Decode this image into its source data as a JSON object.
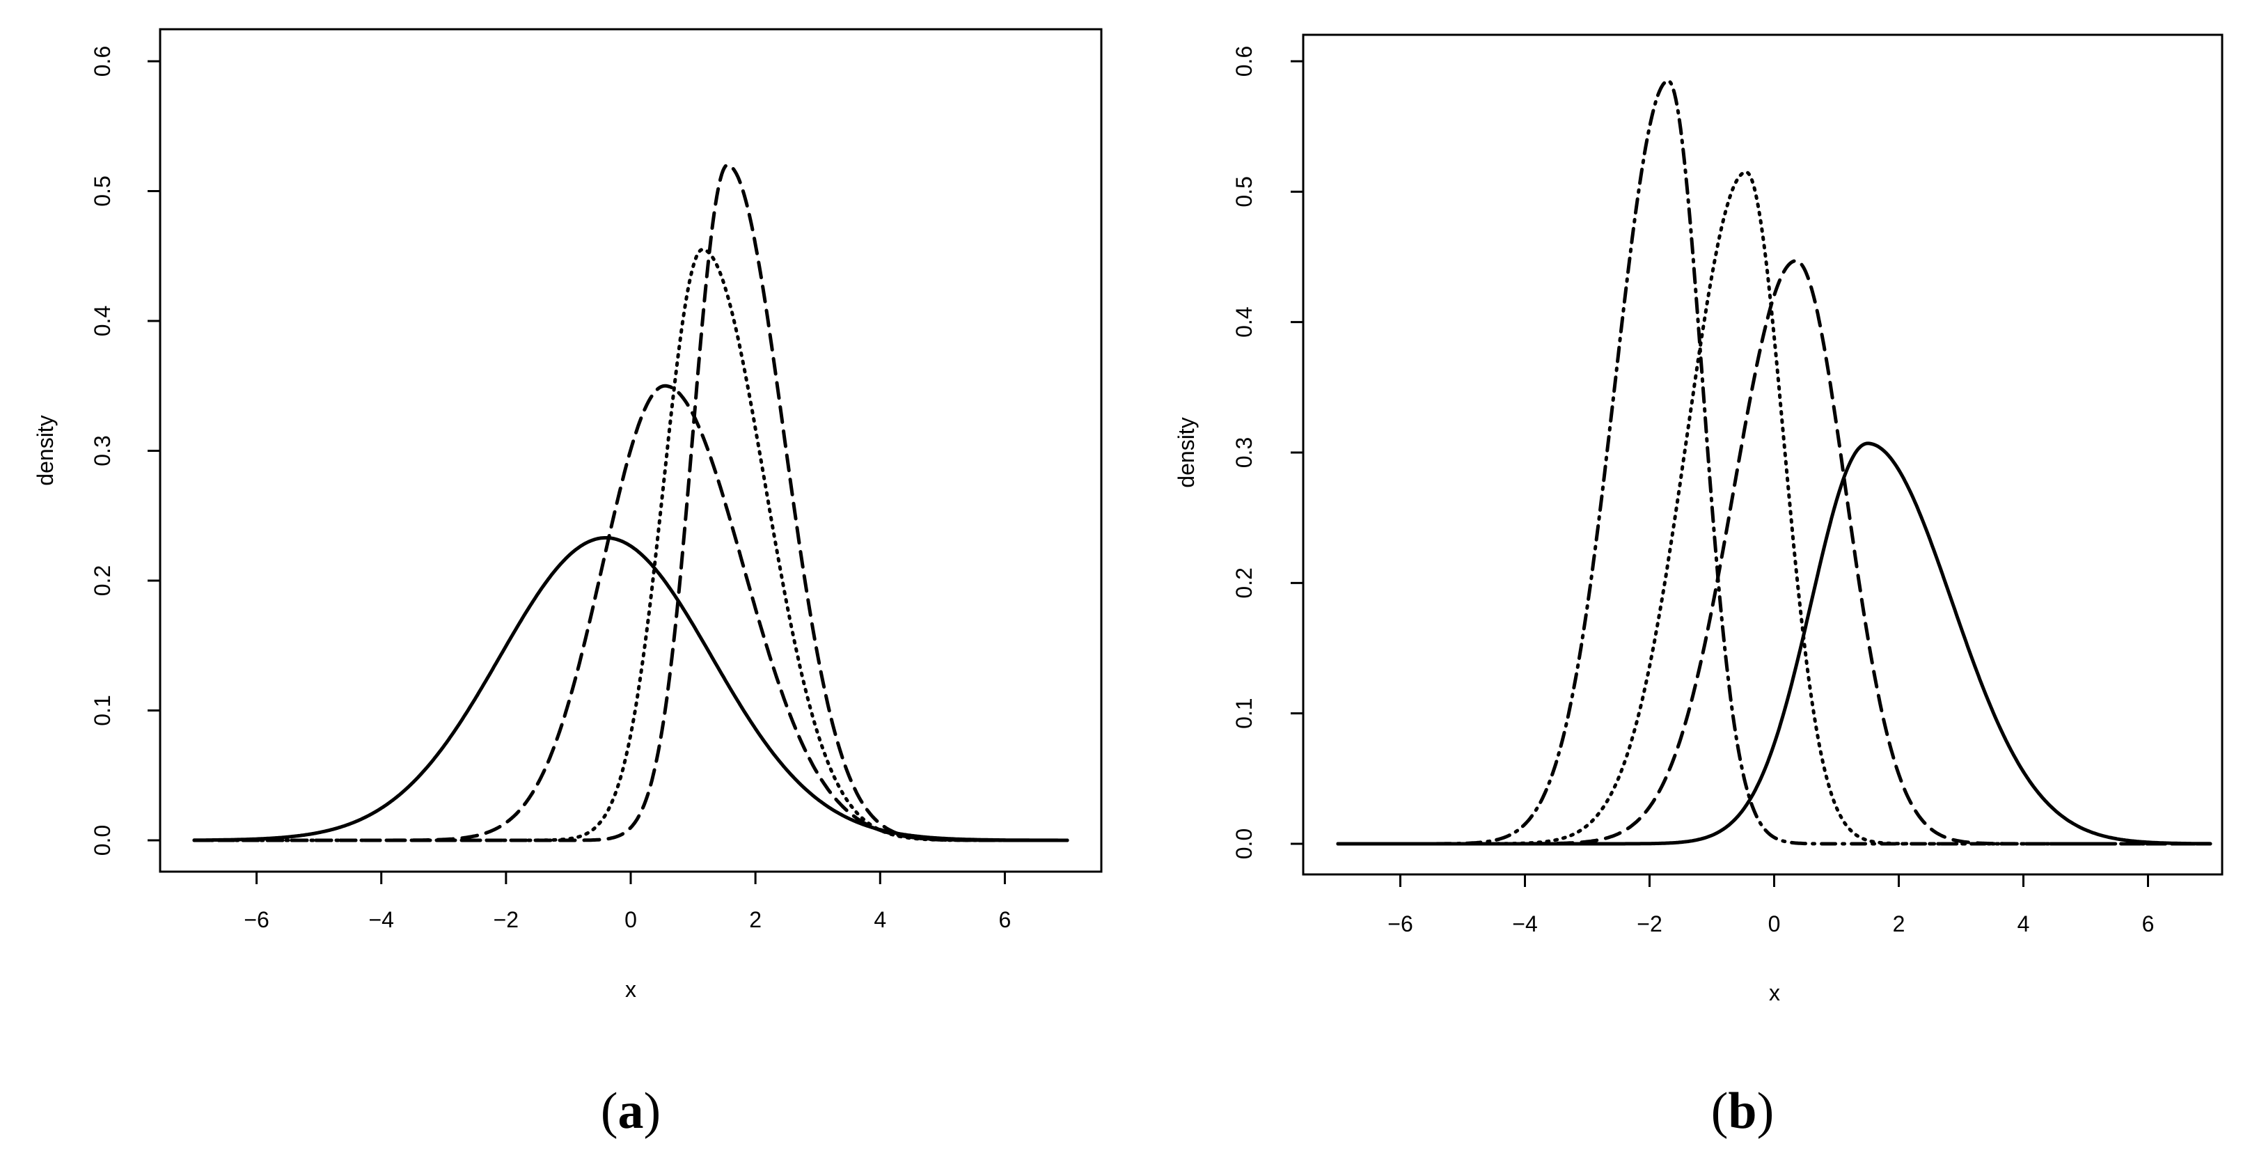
{
  "chart_data": [
    {
      "type": "line",
      "panel_label": {
        "open": "(",
        "letter": "a",
        "close": ")"
      },
      "xlabel": "x",
      "ylabel": "density",
      "xlim": [
        -7,
        7
      ],
      "ylim": [
        0,
        0.6
      ],
      "xticks": [
        -6,
        -4,
        -2,
        0,
        2,
        4,
        6
      ],
      "xtick_labels": [
        "−6",
        "−4",
        "−2",
        "0",
        "2",
        "4",
        "6"
      ],
      "yticks": [
        0.0,
        0.1,
        0.2,
        0.3,
        0.4,
        0.5,
        0.6
      ],
      "ytick_labels": [
        "0.0",
        "0.1",
        "0.2",
        "0.3",
        "0.4",
        "0.5",
        "0.6"
      ],
      "grid": false,
      "legend": "none",
      "series": [
        {
          "name": "solid",
          "linestyle": "solid",
          "peak_x": -0.4,
          "peak_density": 0.233,
          "left_scale": 1.7,
          "right_scale": 1.7
        },
        {
          "name": "dashed-wide",
          "linestyle": "dashed",
          "peak_x": 0.55,
          "peak_density": 0.35,
          "left_scale": 1.0,
          "right_scale": 1.25
        },
        {
          "name": "dotted",
          "linestyle": "dotted",
          "peak_x": 1.15,
          "peak_density": 0.455,
          "left_scale": 0.62,
          "right_scale": 1.0
        },
        {
          "name": "dashed-narrow",
          "linestyle": "dashed",
          "peak_x": 1.55,
          "peak_density": 0.52,
          "left_scale": 0.55,
          "right_scale": 0.9
        }
      ]
    },
    {
      "type": "line",
      "panel_label": {
        "open": "(",
        "letter": "b",
        "close": ")"
      },
      "xlabel": "x",
      "ylabel": "density",
      "xlim": [
        -7,
        7
      ],
      "ylim": [
        0,
        0.6
      ],
      "xticks": [
        -6,
        -4,
        -2,
        0,
        2,
        4,
        6
      ],
      "xtick_labels": [
        "−6",
        "−4",
        "−2",
        "0",
        "2",
        "4",
        "6"
      ],
      "yticks": [
        0.0,
        0.1,
        0.2,
        0.3,
        0.4,
        0.5,
        0.6
      ],
      "ytick_labels": [
        "0.0",
        "0.1",
        "0.2",
        "0.3",
        "0.4",
        "0.5",
        "0.6"
      ],
      "grid": false,
      "legend": "none",
      "series": [
        {
          "name": "dot-dash",
          "linestyle": "dotdash",
          "peak_x": -1.7,
          "peak_density": 0.585,
          "left_scale": 0.85,
          "right_scale": 0.55
        },
        {
          "name": "dotted",
          "linestyle": "dotted",
          "peak_x": -0.45,
          "peak_density": 0.515,
          "left_scale": 0.95,
          "right_scale": 0.6
        },
        {
          "name": "dashed",
          "linestyle": "dashed",
          "peak_x": 0.35,
          "peak_density": 0.447,
          "left_scale": 1.0,
          "right_scale": 0.8
        },
        {
          "name": "solid",
          "linestyle": "solid",
          "peak_x": 1.5,
          "peak_density": 0.307,
          "left_scale": 0.9,
          "right_scale": 1.35
        }
      ]
    }
  ]
}
